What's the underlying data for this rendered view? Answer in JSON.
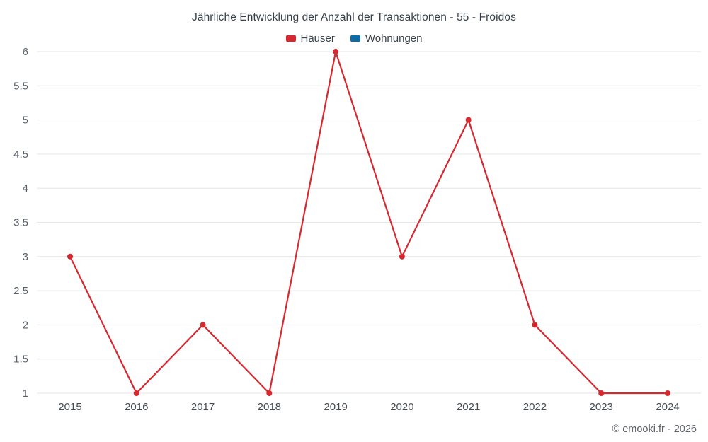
{
  "chart_data": {
    "type": "line",
    "title": "Jährliche Entwicklung der Anzahl der Transaktionen - 55 - Froidos",
    "categories": [
      "2015",
      "2016",
      "2017",
      "2018",
      "2019",
      "2020",
      "2021",
      "2022",
      "2023",
      "2024"
    ],
    "series": [
      {
        "name": "Häuser",
        "color": "#d7282f",
        "values": [
          3,
          1,
          2,
          1,
          6,
          3,
          5,
          2,
          1,
          1
        ]
      },
      {
        "name": "Wohnungen",
        "color": "#0e6ba8",
        "values": []
      }
    ],
    "xlabel": "",
    "ylabel": "",
    "ylim": [
      1,
      6
    ],
    "ytick_step": 0.5,
    "grid": "horizontal",
    "gridline_color": "#e6e6e6",
    "legend_position": "top"
  },
  "footer": {
    "credit": "© emooki.fr - 2026"
  }
}
